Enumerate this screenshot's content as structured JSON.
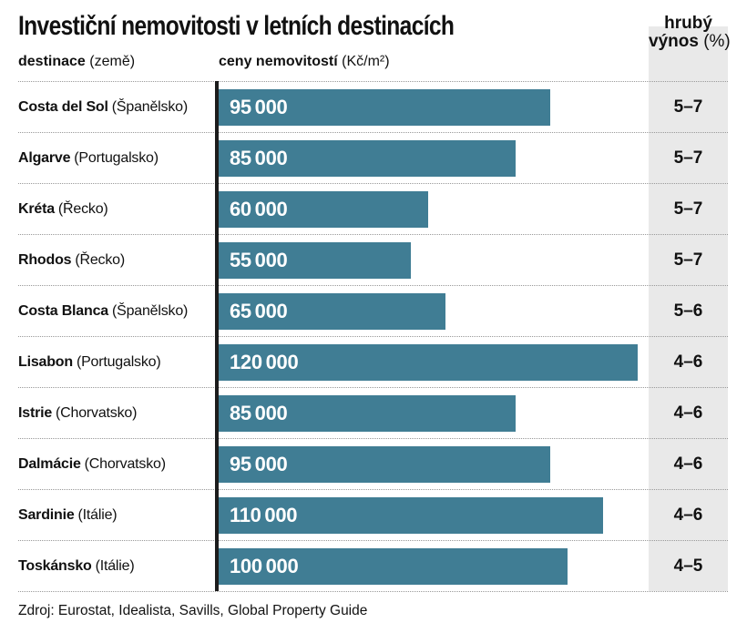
{
  "title": "Investiční nemovitosti v letních destinacích",
  "columns": {
    "destination_bold": "destinace",
    "destination_normal": "(země)",
    "price_bold": "ceny nemovitostí",
    "price_normal": "(Kč/m²)",
    "yield_line1_bold": "hrubý",
    "yield_line2_bold": "výnos",
    "yield_line2_normal": "(%)"
  },
  "source": "Zdroj: Eurostat, Idealista, Savills, Global Property Guide",
  "colors": {
    "bar": "#407d94",
    "yield_column_bg": "#e9e9e9",
    "axis_line": "#1c1c1c",
    "separator": "#999999",
    "bar_value_text": "#ffffff",
    "text": "#111111",
    "background": "#ffffff"
  },
  "chart_data": {
    "type": "bar",
    "orientation": "horizontal",
    "title": "Investiční nemovitosti v letních destinacích",
    "xlabel": "ceny nemovitostí (Kč/m²)",
    "ylabel": "destinace (země)",
    "value_column_label": "hrubý výnos (%)",
    "xlim": [
      0,
      120000
    ],
    "grid": false,
    "legend": false,
    "rows": [
      {
        "name": "Costa del Sol",
        "country": "(Španělsko)",
        "value": 95000,
        "value_label": "95 000",
        "yield": "5–7"
      },
      {
        "name": "Algarve",
        "country": "(Portugalsko)",
        "value": 85000,
        "value_label": "85 000",
        "yield": "5–7"
      },
      {
        "name": "Kréta",
        "country": "(Řecko)",
        "value": 60000,
        "value_label": "60 000",
        "yield": "5–7"
      },
      {
        "name": "Rhodos",
        "country": "(Řecko)",
        "value": 55000,
        "value_label": "55 000",
        "yield": "5–7"
      },
      {
        "name": "Costa Blanca",
        "country": "(Španělsko)",
        "value": 65000,
        "value_label": "65 000",
        "yield": "5–6"
      },
      {
        "name": "Lisabon",
        "country": "(Portugalsko)",
        "value": 120000,
        "value_label": "120 000",
        "yield": "4–6"
      },
      {
        "name": "Istrie",
        "country": "(Chorvatsko)",
        "value": 85000,
        "value_label": "85 000",
        "yield": "4–6"
      },
      {
        "name": "Dalmácie",
        "country": "(Chorvatsko)",
        "value": 95000,
        "value_label": "95 000",
        "yield": "4–6"
      },
      {
        "name": "Sardinie",
        "country": "(Itálie)",
        "value": 110000,
        "value_label": "110 000",
        "yield": "4–6"
      },
      {
        "name": "Toskánsko",
        "country": "(Itálie)",
        "value": 100000,
        "value_label": "100 000",
        "yield": "4–5"
      }
    ]
  }
}
